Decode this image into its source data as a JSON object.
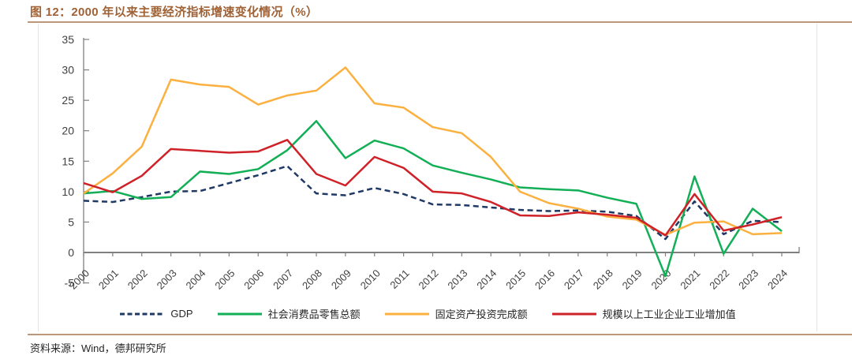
{
  "figure": {
    "title": "图 12：2000 年以来主要经济指标增速变化情况（%）",
    "source": "资料来源：Wind，德邦研究所",
    "accent_color": "#A06134",
    "rule_color": "#BD9778"
  },
  "chart_data": {
    "type": "line",
    "title": "图 12：2000 年以来主要经济指标增速变化情况（%）",
    "unit": "%",
    "grid": false,
    "legend_position": "bottom",
    "ylim": [
      -5,
      35
    ],
    "yticks": [
      35,
      30,
      25,
      20,
      15,
      10,
      5,
      0,
      -5
    ],
    "x": [
      "2000",
      "2001",
      "2002",
      "2003",
      "2004",
      "2005",
      "2006",
      "2007",
      "2008",
      "2009",
      "2010",
      "2011",
      "2012",
      "2013",
      "2014",
      "2015",
      "2016",
      "2017",
      "2018",
      "2019",
      "2020",
      "2021",
      "2022",
      "2023",
      "2024"
    ],
    "series": [
      {
        "name": "GDP",
        "color": "#1F3864",
        "dash": "7 4.5",
        "values": [
          8.5,
          8.3,
          9.1,
          10.0,
          10.1,
          11.4,
          12.7,
          14.2,
          9.7,
          9.4,
          10.6,
          9.6,
          7.9,
          7.8,
          7.4,
          7.0,
          6.8,
          6.9,
          6.7,
          6.0,
          2.2,
          8.4,
          3.0,
          5.2,
          5.0
        ]
      },
      {
        "name": "社会消费品零售总额",
        "color": "#12AF56",
        "dash": null,
        "values": [
          9.7,
          10.1,
          8.8,
          9.1,
          13.3,
          12.9,
          13.7,
          16.8,
          21.6,
          15.5,
          18.4,
          17.1,
          14.3,
          13.1,
          12.0,
          10.7,
          10.4,
          10.2,
          9.0,
          8.0,
          -3.9,
          12.5,
          -0.2,
          7.2,
          3.5
        ]
      },
      {
        "name": "固定资产投资完成额",
        "color": "#FBB03F",
        "dash": null,
        "values": [
          9.7,
          13.0,
          17.4,
          28.4,
          27.6,
          27.2,
          24.3,
          25.8,
          26.6,
          30.4,
          24.5,
          23.8,
          20.6,
          19.6,
          15.7,
          10.0,
          8.1,
          7.2,
          5.9,
          5.4,
          2.9,
          4.9,
          5.1,
          3.0,
          3.2
        ]
      },
      {
        "name": "规模以上工业企业工业增加值",
        "color": "#CF2128",
        "dash": null,
        "values": [
          11.4,
          9.9,
          12.6,
          17.0,
          16.7,
          16.4,
          16.6,
          18.5,
          12.9,
          11.0,
          15.7,
          13.9,
          10.0,
          9.7,
          8.3,
          6.1,
          6.0,
          6.6,
          6.2,
          5.7,
          2.8,
          9.6,
          3.6,
          4.6,
          5.8
        ]
      }
    ],
    "axis_color": "#7F7F7F",
    "tick_label_color": "#3F3F3F"
  }
}
